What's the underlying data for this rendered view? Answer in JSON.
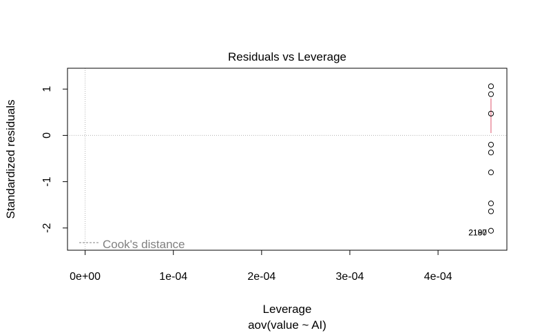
{
  "chart_data": {
    "type": "scatter",
    "title": "Residuals vs Leverage",
    "xlabel": "Leverage",
    "subtitle": "aov(value ~ AI)",
    "ylabel": "Standardized residuals",
    "xlim": [
      -2e-05,
      0.000478
    ],
    "ylim": [
      -2.48,
      1.45
    ],
    "x_ticks": [
      {
        "value": 0,
        "label": "0e+00"
      },
      {
        "value": 0.0001,
        "label": "1e-04"
      },
      {
        "value": 0.0002,
        "label": "2e-04"
      },
      {
        "value": 0.0003,
        "label": "3e-04"
      },
      {
        "value": 0.0004,
        "label": "4e-04"
      }
    ],
    "y_ticks": [
      {
        "value": -2,
        "label": "-2"
      },
      {
        "value": -1,
        "label": "-1"
      },
      {
        "value": 0,
        "label": "0"
      },
      {
        "value": 1,
        "label": "1"
      }
    ],
    "points": [
      {
        "x": 0.00046,
        "y": 1.06
      },
      {
        "x": 0.00046,
        "y": 0.89
      },
      {
        "x": 0.00046,
        "y": 0.47
      },
      {
        "x": 0.00046,
        "y": -0.2
      },
      {
        "x": 0.00046,
        "y": -0.37
      },
      {
        "x": 0.00046,
        "y": -0.8
      },
      {
        "x": 0.00046,
        "y": -1.47
      },
      {
        "x": 0.00046,
        "y": -1.64
      },
      {
        "x": 0.00046,
        "y": -2.06
      }
    ],
    "point_labels": [
      {
        "x": 0.00046,
        "y": -2.1,
        "text": "2190"
      },
      {
        "x": 0.00046,
        "y": -2.1,
        "text": "2187"
      }
    ],
    "smooth_line": {
      "color": "#df536b",
      "x": 0.00046,
      "y_from": 0.05,
      "y_to": 0.8
    },
    "reference_lines": {
      "h": 0,
      "v": 0,
      "style": "dotted",
      "color": "#b0b0b0"
    },
    "legend": {
      "label": "Cook's distance",
      "position": "bottom-left"
    }
  }
}
